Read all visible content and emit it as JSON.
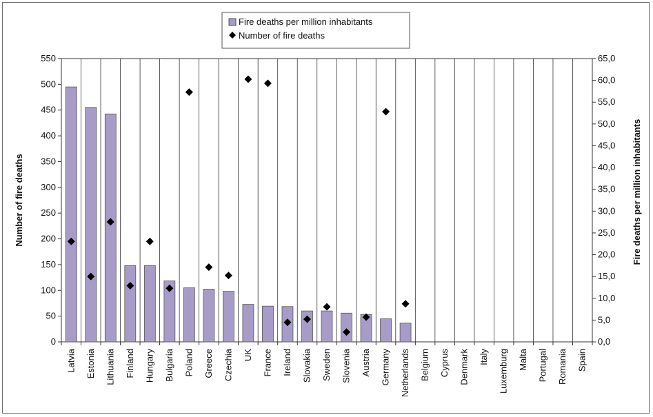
{
  "chart_data": {
    "type": "bar",
    "categories": [
      "Latvia",
      "Estonia",
      "Lithuania",
      "Finland",
      "Hungary",
      "Bulgaria",
      "Poland",
      "Greece",
      "Czechia",
      "UK",
      "France",
      "Ireland",
      "Slovakia",
      "Sweden",
      "Slovenia",
      "Austria",
      "Germany",
      "Netherlands",
      "Belgium",
      "Cyprus",
      "Denmark",
      "Italy",
      "Luxemburg",
      "Malta",
      "Portugal",
      "Romania",
      "Spain"
    ],
    "series": [
      {
        "name": "Fire deaths per million inhabitants",
        "kind": "bar",
        "axis": "right",
        "color": "#a79cc8",
        "values": [
          58.5,
          53.8,
          52.3,
          17.5,
          17.5,
          14.0,
          12.4,
          12.1,
          11.6,
          8.6,
          8.2,
          8.1,
          7.1,
          7.1,
          6.6,
          6.3,
          5.3,
          4.3,
          null,
          null,
          null,
          null,
          null,
          null,
          null,
          null,
          null
        ]
      },
      {
        "name": "Number of fire deaths",
        "kind": "scatter",
        "axis": "left",
        "marker": "diamond",
        "color": "#000000",
        "values": [
          195,
          127,
          233,
          109,
          195,
          104,
          485,
          145,
          129,
          510,
          502,
          38,
          44,
          68,
          19,
          48,
          447,
          74,
          null,
          null,
          null,
          null,
          null,
          null,
          null,
          null,
          null
        ]
      }
    ],
    "ylabel": "Number of fire deaths",
    "y2label": "Fire deaths per million inhabitants",
    "ylim": [
      0,
      550
    ],
    "y2lim": [
      0,
      65
    ],
    "yticks": [
      "0",
      "50",
      "100",
      "150",
      "200",
      "250",
      "300",
      "350",
      "400",
      "450",
      "500",
      "550"
    ],
    "y2ticks": [
      "0,0",
      "5,0",
      "10,0",
      "15,0",
      "20,0",
      "25,0",
      "30,0",
      "35,0",
      "40,0",
      "45,0",
      "50,0",
      "55,0",
      "60,0",
      "65,0"
    ],
    "grid": "vertical category separators",
    "legend_position": "top-center"
  }
}
